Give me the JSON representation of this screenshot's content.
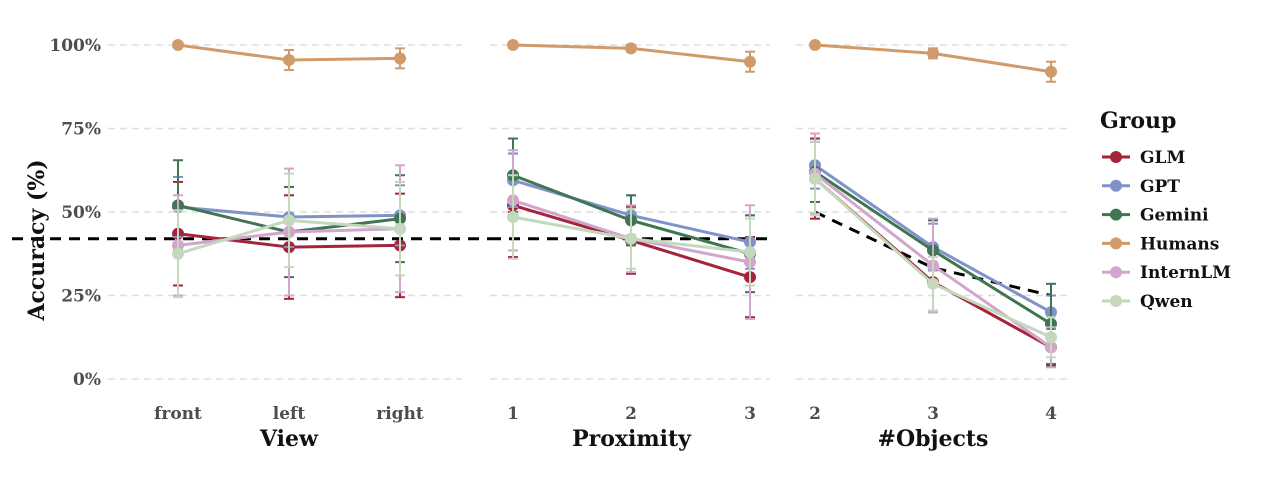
{
  "chart_data": {
    "type": "line",
    "ylabel": "Accuracy (%)",
    "ylim": [
      0,
      100
    ],
    "yticks": [
      0,
      25,
      50,
      75,
      100
    ],
    "ytick_labels": [
      "0%",
      "25%",
      "50%",
      "75%",
      "100%"
    ],
    "grid": true,
    "legend": {
      "title": "Group",
      "position": "right",
      "entries": [
        "GLM",
        "GPT",
        "Gemini",
        "Humans",
        "InternLM",
        "Qwen"
      ]
    },
    "colors": {
      "GLM": "#a3243b",
      "GPT": "#7f93c9",
      "Gemini": "#3f7550",
      "Humans": "#d19a6a",
      "InternLM": "#d2a6cc",
      "Qwen": "#c3d8bc",
      "chance": "#000000"
    },
    "panels": [
      {
        "xlabel": "View",
        "categories": [
          "front",
          "left",
          "right"
        ],
        "chance": [
          42,
          42,
          42
        ],
        "series": [
          {
            "name": "GLM",
            "values": [
              43.5,
              39.5,
              40
            ],
            "err": [
              15.5,
              15.5,
              15.5
            ]
          },
          {
            "name": "GPT",
            "values": [
              51.5,
              48.5,
              49
            ],
            "err": [
              9,
              9,
              9
            ]
          },
          {
            "name": "Gemini",
            "values": [
              52,
              44,
              48
            ],
            "err": [
              13.5,
              13.5,
              13
            ]
          },
          {
            "name": "Humans",
            "values": [
              100,
              95.5,
              96
            ],
            "err": [
              0,
              3,
              3
            ]
          },
          {
            "name": "InternLM",
            "values": [
              40,
              44,
              45
            ],
            "err": [
              15,
              19,
              19
            ]
          },
          {
            "name": "Qwen",
            "values": [
              37.5,
              47.5,
              45
            ],
            "err": [
              13,
              14,
              14
            ]
          }
        ]
      },
      {
        "xlabel": "Proximity",
        "categories": [
          "1",
          "2",
          "3"
        ],
        "chance": [
          42,
          42,
          42
        ],
        "series": [
          {
            "name": "GLM",
            "values": [
              52,
              41.5,
              30.5
            ],
            "err": [
              15.5,
              10,
              12
            ]
          },
          {
            "name": "GPT",
            "values": [
              59.5,
              49,
              41
            ],
            "err": [
              8,
              6,
              8
            ]
          },
          {
            "name": "Gemini",
            "values": [
              61,
              47.5,
              37.5
            ],
            "err": [
              11,
              7.5,
              11.5
            ]
          },
          {
            "name": "Humans",
            "values": [
              100,
              99,
              95
            ],
            "err": [
              0,
              1,
              3
            ]
          },
          {
            "name": "InternLM",
            "values": [
              53.5,
              42,
              35
            ],
            "err": [
              15,
              10,
              17
            ]
          },
          {
            "name": "Qwen",
            "values": [
              48.5,
              42,
              38
            ],
            "err": [
              12.5,
              9,
              10
            ]
          }
        ]
      },
      {
        "xlabel": "#Objects",
        "categories": [
          "2",
          "3",
          "4"
        ],
        "chance": [
          50,
          33.3,
          25
        ],
        "series": [
          {
            "name": "GLM",
            "values": [
              60,
              29,
              9.5
            ],
            "err": [
              12,
              9,
              5.5
            ]
          },
          {
            "name": "GPT",
            "values": [
              64,
              39.5,
              20
            ],
            "err": [
              7,
              7,
              5
            ]
          },
          {
            "name": "Gemini",
            "values": [
              62,
              38.5,
              16.5
            ],
            "err": [
              9,
              9,
              12
            ]
          },
          {
            "name": "Humans",
            "values": [
              100,
              97.5,
              92
            ],
            "err": [
              0,
              1.5,
              3
            ]
          },
          {
            "name": "InternLM",
            "values": [
              61.5,
              34,
              9.5
            ],
            "err": [
              12,
              14,
              6
            ]
          },
          {
            "name": "Qwen",
            "values": [
              60,
              28.5,
              12.5
            ],
            "err": [
              11,
              8,
              6
            ]
          }
        ]
      }
    ]
  }
}
